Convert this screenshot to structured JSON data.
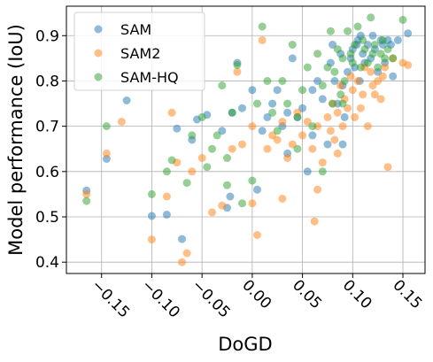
{
  "chart_data": {
    "type": "scatter",
    "xlabel": "DoGD",
    "ylabel": "Model performance (IoU)",
    "xlim": [
      -0.185,
      0.172
    ],
    "ylim": [
      0.375,
      0.965
    ],
    "xticks": [
      -0.15,
      -0.1,
      -0.05,
      0.0,
      0.05,
      0.1,
      0.15
    ],
    "xtick_labels": [
      "−0.15",
      "−0.10",
      "−0.05",
      "0.00",
      "0.05",
      "0.10",
      "0.15"
    ],
    "yticks": [
      0.4,
      0.5,
      0.6,
      0.7,
      0.8,
      0.9
    ],
    "ytick_labels": [
      "0.4",
      "0.5",
      "0.6",
      "0.7",
      "0.8",
      "0.9"
    ],
    "grid": true,
    "legend_position": "top-left",
    "series": [
      {
        "name": "SAM",
        "color": "#1f77b4",
        "points": [
          [
            -0.165,
            0.558
          ],
          [
            -0.145,
            0.628
          ],
          [
            -0.125,
            0.757
          ],
          [
            -0.1,
            0.502
          ],
          [
            -0.085,
            0.505
          ],
          [
            -0.075,
            0.695
          ],
          [
            -0.07,
            0.451
          ],
          [
            -0.06,
            0.67
          ],
          [
            -0.055,
            0.715
          ],
          [
            -0.045,
            0.725
          ],
          [
            -0.03,
            0.69
          ],
          [
            -0.025,
            0.52
          ],
          [
            -0.022,
            0.545
          ],
          [
            -0.02,
            0.73
          ],
          [
            -0.015,
            0.84
          ],
          [
            -0.01,
            0.74
          ],
          [
            0.0,
            0.78
          ],
          [
            0.005,
            0.56
          ],
          [
            0.01,
            0.69
          ],
          [
            0.015,
            0.72
          ],
          [
            0.02,
            0.75
          ],
          [
            0.025,
            0.78
          ],
          [
            0.03,
            0.7
          ],
          [
            0.035,
            0.64
          ],
          [
            0.04,
            0.85
          ],
          [
            0.045,
            0.72
          ],
          [
            0.05,
            0.74
          ],
          [
            0.055,
            0.6
          ],
          [
            0.06,
            0.68
          ],
          [
            0.065,
            0.8
          ],
          [
            0.07,
            0.76
          ],
          [
            0.075,
            0.66
          ],
          [
            0.078,
            0.84
          ],
          [
            0.08,
            0.88
          ],
          [
            0.082,
            0.8
          ],
          [
            0.085,
            0.75
          ],
          [
            0.088,
            0.86
          ],
          [
            0.09,
            0.79
          ],
          [
            0.092,
            0.72
          ],
          [
            0.095,
            0.82
          ],
          [
            0.098,
            0.85
          ],
          [
            0.1,
            0.87
          ],
          [
            0.102,
            0.83
          ],
          [
            0.104,
            0.88
          ],
          [
            0.105,
            0.89
          ],
          [
            0.107,
            0.8
          ],
          [
            0.108,
            0.9
          ],
          [
            0.11,
            0.86
          ],
          [
            0.112,
            0.84
          ],
          [
            0.115,
            0.88
          ],
          [
            0.118,
            0.85
          ],
          [
            0.12,
            0.9
          ],
          [
            0.122,
            0.87
          ],
          [
            0.125,
            0.82
          ],
          [
            0.128,
            0.89
          ],
          [
            0.13,
            0.88
          ],
          [
            0.132,
            0.84
          ],
          [
            0.135,
            0.89
          ],
          [
            0.138,
            0.88
          ],
          [
            0.14,
            0.81
          ],
          [
            0.145,
            0.89
          ],
          [
            0.155,
            0.905
          ],
          [
            0.035,
            0.73
          ],
          [
            0.06,
            0.78
          ],
          [
            0.09,
            0.66
          ]
        ]
      },
      {
        "name": "SAM2",
        "color": "#ff7f0e",
        "points": [
          [
            -0.165,
            0.55
          ],
          [
            -0.145,
            0.64
          ],
          [
            -0.13,
            0.71
          ],
          [
            -0.1,
            0.45
          ],
          [
            -0.085,
            0.545
          ],
          [
            -0.08,
            0.73
          ],
          [
            -0.075,
            0.62
          ],
          [
            -0.07,
            0.4
          ],
          [
            -0.065,
            0.42
          ],
          [
            -0.06,
            0.6
          ],
          [
            -0.05,
            0.63
          ],
          [
            -0.04,
            0.51
          ],
          [
            -0.03,
            0.525
          ],
          [
            -0.02,
            0.65
          ],
          [
            -0.015,
            0.82
          ],
          [
            -0.01,
            0.66
          ],
          [
            0.0,
            0.7
          ],
          [
            0.005,
            0.46
          ],
          [
            0.01,
            0.89
          ],
          [
            0.015,
            0.65
          ],
          [
            0.02,
            0.68
          ],
          [
            0.025,
            0.67
          ],
          [
            0.03,
            0.71
          ],
          [
            0.035,
            0.63
          ],
          [
            0.04,
            0.66
          ],
          [
            0.045,
            0.73
          ],
          [
            0.05,
            0.68
          ],
          [
            0.055,
            0.71
          ],
          [
            0.06,
            0.65
          ],
          [
            0.062,
            0.49
          ],
          [
            0.065,
            0.7
          ],
          [
            0.07,
            0.62
          ],
          [
            0.075,
            0.72
          ],
          [
            0.078,
            0.69
          ],
          [
            0.08,
            0.75
          ],
          [
            0.082,
            0.67
          ],
          [
            0.085,
            0.73
          ],
          [
            0.088,
            0.79
          ],
          [
            0.09,
            0.7
          ],
          [
            0.092,
            0.76
          ],
          [
            0.095,
            0.74
          ],
          [
            0.098,
            0.81
          ],
          [
            0.1,
            0.78
          ],
          [
            0.102,
            0.72
          ],
          [
            0.105,
            0.8
          ],
          [
            0.108,
            0.74
          ],
          [
            0.11,
            0.77
          ],
          [
            0.112,
            0.83
          ],
          [
            0.115,
            0.7
          ],
          [
            0.118,
            0.82
          ],
          [
            0.12,
            0.79
          ],
          [
            0.122,
            0.77
          ],
          [
            0.125,
            0.8
          ],
          [
            0.128,
            0.76
          ],
          [
            0.13,
            0.81
          ],
          [
            0.132,
            0.83
          ],
          [
            0.135,
            0.61
          ],
          [
            0.14,
            0.85
          ],
          [
            0.15,
            0.84
          ],
          [
            0.155,
            0.835
          ],
          [
            0.0,
            0.53
          ],
          [
            0.03,
            0.54
          ],
          [
            0.065,
            0.56
          ],
          [
            0.085,
            0.64
          ]
        ]
      },
      {
        "name": "SAM-HQ",
        "color": "#2ca02c",
        "points": [
          [
            -0.165,
            0.535
          ],
          [
            -0.145,
            0.7
          ],
          [
            -0.1,
            0.55
          ],
          [
            -0.085,
            0.6
          ],
          [
            -0.08,
            0.625
          ],
          [
            -0.065,
            0.575
          ],
          [
            -0.06,
            0.68
          ],
          [
            -0.05,
            0.72
          ],
          [
            -0.045,
            0.61
          ],
          [
            -0.04,
            0.65
          ],
          [
            -0.035,
            0.68
          ],
          [
            -0.03,
            0.79
          ],
          [
            -0.025,
            0.57
          ],
          [
            -0.02,
            0.73
          ],
          [
            -0.015,
            0.835
          ],
          [
            -0.01,
            0.53
          ],
          [
            0.0,
            0.58
          ],
          [
            0.005,
            0.75
          ],
          [
            0.01,
            0.92
          ],
          [
            0.015,
            0.8
          ],
          [
            0.02,
            0.73
          ],
          [
            0.025,
            0.69
          ],
          [
            0.03,
            0.8
          ],
          [
            0.035,
            0.75
          ],
          [
            0.04,
            0.88
          ],
          [
            0.045,
            0.72
          ],
          [
            0.05,
            0.78
          ],
          [
            0.055,
            0.83
          ],
          [
            0.06,
            0.7
          ],
          [
            0.065,
            0.86
          ],
          [
            0.07,
            0.79
          ],
          [
            0.075,
            0.83
          ],
          [
            0.078,
            0.91
          ],
          [
            0.08,
            0.75
          ],
          [
            0.082,
            0.82
          ],
          [
            0.085,
            0.87
          ],
          [
            0.088,
            0.77
          ],
          [
            0.09,
            0.85
          ],
          [
            0.092,
            0.8
          ],
          [
            0.095,
            0.91
          ],
          [
            0.098,
            0.86
          ],
          [
            0.1,
            0.84
          ],
          [
            0.102,
            0.88
          ],
          [
            0.105,
            0.92
          ],
          [
            0.108,
            0.83
          ],
          [
            0.11,
            0.89
          ],
          [
            0.112,
            0.87
          ],
          [
            0.115,
            0.84
          ],
          [
            0.118,
            0.94
          ],
          [
            0.12,
            0.86
          ],
          [
            0.122,
            0.88
          ],
          [
            0.125,
            0.83
          ],
          [
            0.128,
            0.86
          ],
          [
            0.13,
            0.89
          ],
          [
            0.132,
            0.85
          ],
          [
            0.135,
            0.87
          ],
          [
            0.14,
            0.85
          ],
          [
            0.15,
            0.935
          ],
          [
            -0.025,
            0.63
          ],
          [
            0.045,
            0.65
          ],
          [
            0.07,
            0.6
          ],
          [
            0.09,
            0.75
          ]
        ]
      }
    ]
  }
}
